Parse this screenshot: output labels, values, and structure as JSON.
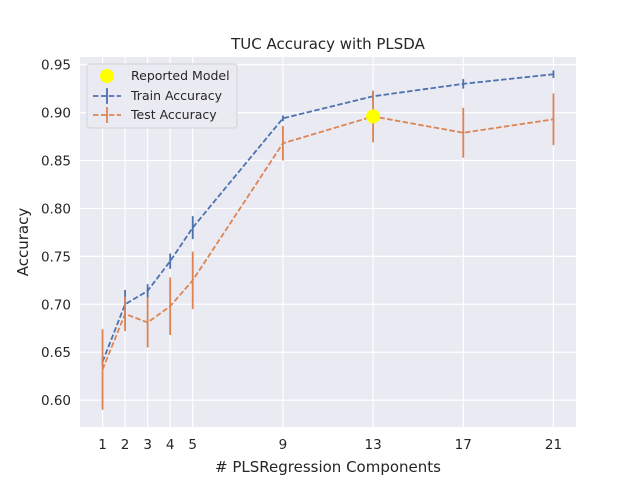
{
  "chart_data": {
    "type": "line",
    "title": "TUC Accuracy with PLSDA",
    "xlabel": "# PLSRegression Components",
    "ylabel": "Accuracy",
    "xlim": [
      0,
      22
    ],
    "ylim": [
      0.572,
      0.958
    ],
    "x_ticks": [
      1,
      2,
      3,
      4,
      5,
      9,
      13,
      17,
      21
    ],
    "y_ticks": [
      0.6,
      0.65,
      0.7,
      0.75,
      0.8,
      0.85,
      0.9,
      0.95
    ],
    "y_tick_labels": [
      "0.60",
      "0.65",
      "0.70",
      "0.75",
      "0.80",
      "0.85",
      "0.90",
      "0.95"
    ],
    "grid": true,
    "legend_position": "top-left",
    "background_color": "#eaeaf2",
    "series": [
      {
        "name": "Train Accuracy",
        "color": "#4c72b0",
        "linestyle": "dashed",
        "x": [
          1,
          2,
          3,
          4,
          5,
          9,
          13,
          17,
          21
        ],
        "y": [
          0.64,
          0.7,
          0.714,
          0.745,
          0.78,
          0.894,
          0.917,
          0.93,
          0.94
        ],
        "err": [
          0.004,
          0.015,
          0.007,
          0.008,
          0.012,
          0.003,
          0.005,
          0.005,
          0.004
        ]
      },
      {
        "name": "Test Accuracy",
        "color": "#dd8452",
        "linestyle": "dashed",
        "x": [
          1,
          2,
          3,
          4,
          5,
          9,
          13,
          17,
          21
        ],
        "y": [
          0.632,
          0.69,
          0.681,
          0.698,
          0.725,
          0.868,
          0.896,
          0.879,
          0.893
        ],
        "err": [
          0.042,
          0.018,
          0.026,
          0.03,
          0.03,
          0.018,
          0.027,
          0.026,
          0.027
        ]
      }
    ],
    "annotations": [
      {
        "name": "Reported Model",
        "x": 13,
        "y": 0.896,
        "color": "#ffff00",
        "marker": "circle"
      }
    ]
  }
}
